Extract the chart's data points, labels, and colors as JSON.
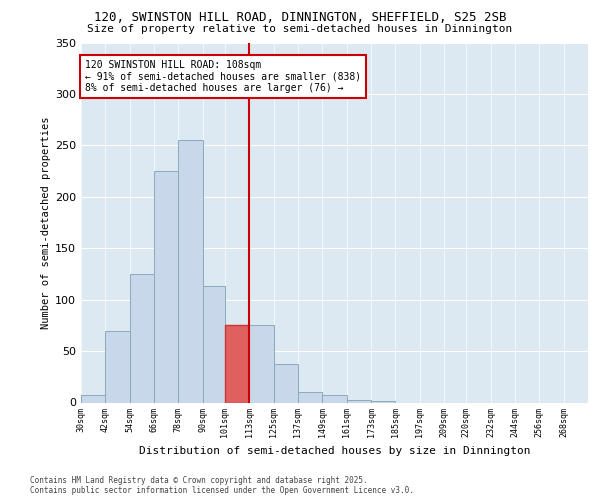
{
  "title1": "120, SWINSTON HILL ROAD, DINNINGTON, SHEFFIELD, S25 2SB",
  "title2": "Size of property relative to semi-detached houses in Dinnington",
  "xlabel": "Distribution of semi-detached houses by size in Dinnington",
  "ylabel": "Number of semi-detached properties",
  "bins": [
    "30sqm",
    "42sqm",
    "54sqm",
    "66sqm",
    "78sqm",
    "90sqm",
    "101sqm",
    "113sqm",
    "125sqm",
    "137sqm",
    "149sqm",
    "161sqm",
    "173sqm",
    "185sqm",
    "197sqm",
    "209sqm",
    "220sqm",
    "232sqm",
    "244sqm",
    "256sqm",
    "268sqm"
  ],
  "bin_edges": [
    30,
    42,
    54,
    66,
    78,
    90,
    101,
    113,
    125,
    137,
    149,
    161,
    173,
    185,
    197,
    209,
    220,
    232,
    244,
    256,
    268
  ],
  "values": [
    7,
    70,
    125,
    225,
    255,
    113,
    75,
    75,
    37,
    10,
    7,
    2,
    1,
    0,
    0,
    0,
    0,
    0,
    0,
    0
  ],
  "highlight_bin_index": 6,
  "vline_x": 113,
  "property_label": "120 SWINSTON HILL ROAD: 108sqm",
  "annotation_line1": "← 91% of semi-detached houses are smaller (838)",
  "annotation_line2": "8% of semi-detached houses are larger (76) →",
  "bar_color": "#c8d8ea",
  "bar_color_highlight": "#e06060",
  "bar_edge_color": "#8aabbb",
  "bar_edge_highlight": "#cc3333",
  "vline_color": "#cc0000",
  "annotation_box_edge": "#cc0000",
  "bg_color": "#dce8f2",
  "footer1": "Contains HM Land Registry data © Crown copyright and database right 2025.",
  "footer2": "Contains public sector information licensed under the Open Government Licence v3.0.",
  "ylim": [
    0,
    350
  ],
  "yticks": [
    0,
    50,
    100,
    150,
    200,
    250,
    300,
    350
  ]
}
